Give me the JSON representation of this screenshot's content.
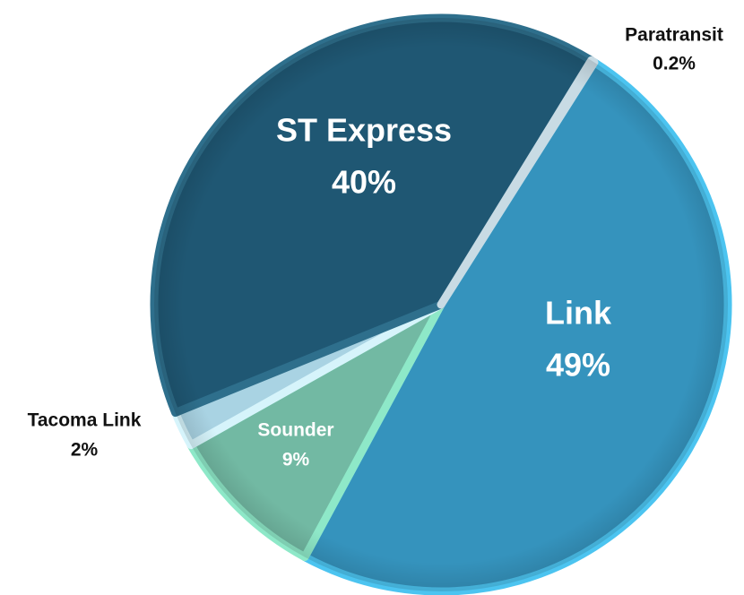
{
  "chart_data": {
    "type": "pie",
    "categories": [
      "Link",
      "Sounder",
      "Tacoma Link",
      "ST Express",
      "Paratransit"
    ],
    "values": [
      49,
      9,
      2,
      40,
      0.2
    ],
    "value_labels": [
      "49%",
      "9%",
      "2%",
      "40%",
      "0.2%"
    ],
    "colors": [
      "#3593bd",
      "#72b9a3",
      "#a9d3e3",
      "#1f5773",
      "#8fb3c4"
    ]
  }
}
